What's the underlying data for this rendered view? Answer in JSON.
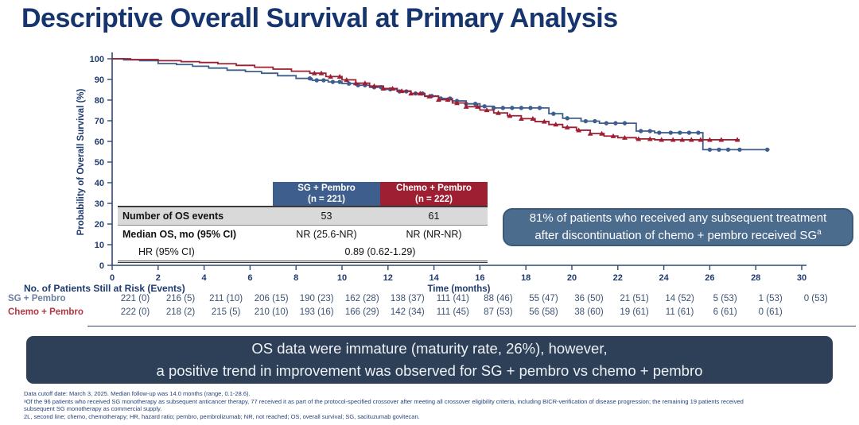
{
  "slide": {
    "title": "Descriptive Overall Survival at Primary Analysis",
    "colors": {
      "navy": "#16356e",
      "axis": "#2f4a6e",
      "sg_blue": "#3e5f8e",
      "chemo_red": "#9e1e32",
      "banner_bg": "#2e4057",
      "callout_bg": "#4c6c8e",
      "shaded_row": "#d9d9d9"
    }
  },
  "chart_data": {
    "type": "line",
    "subtype": "kaplan-meier-step",
    "xlabel": "Time (months)",
    "ylabel": "Probability of Overall Survival (%)",
    "xlim": [
      0,
      30
    ],
    "ylim": [
      0,
      100
    ],
    "xticks": [
      0,
      2,
      4,
      6,
      8,
      10,
      12,
      14,
      16,
      18,
      20,
      22,
      24,
      26,
      28,
      30
    ],
    "yticks": [
      0,
      10,
      20,
      30,
      40,
      50,
      60,
      70,
      80,
      90,
      100
    ],
    "grid": false,
    "legend_position": "table-overlay",
    "series": [
      {
        "name": "SG + Pembro",
        "n": 221,
        "color": "#3e5f8e",
        "marker": "circle",
        "points": [
          [
            0,
            100
          ],
          [
            0.5,
            99.5
          ],
          [
            1.2,
            99.1
          ],
          [
            2,
            97.7
          ],
          [
            2.8,
            97.2
          ],
          [
            3.5,
            96.4
          ],
          [
            4.2,
            95.5
          ],
          [
            5,
            94.5
          ],
          [
            5.8,
            93.8
          ],
          [
            6.5,
            93
          ],
          [
            7.2,
            91.8
          ],
          [
            8,
            90.5
          ],
          [
            8.7,
            89.6
          ],
          [
            9.4,
            88.8
          ],
          [
            10,
            88
          ],
          [
            10.6,
            87.2
          ],
          [
            11.2,
            86.2
          ],
          [
            11.8,
            85.2
          ],
          [
            12.4,
            84.2
          ],
          [
            13,
            83.2
          ],
          [
            13.6,
            82
          ],
          [
            14.2,
            80.8
          ],
          [
            14.8,
            79.6
          ],
          [
            15.4,
            78.2
          ],
          [
            16,
            77
          ],
          [
            16.6,
            76.2
          ],
          [
            19,
            73.4
          ],
          [
            19.6,
            71.2
          ],
          [
            20.4,
            69.8
          ],
          [
            21.2,
            68.8
          ],
          [
            22.8,
            65
          ],
          [
            23.6,
            64.2
          ],
          [
            25.7,
            56
          ],
          [
            28.6,
            56
          ]
        ],
        "censor_marks": [
          8.6,
          8.9,
          9.2,
          9.6,
          9.9,
          10.3,
          10.7,
          11,
          11.4,
          11.7,
          12.1,
          12.5,
          12.8,
          13.2,
          13.5,
          13.9,
          14.3,
          14.7,
          15,
          15.4,
          15.8,
          16.2,
          16.6,
          17,
          17.4,
          17.8,
          18.2,
          18.6,
          19.2,
          19.8,
          20.6,
          21,
          21.5,
          21.9,
          22.3,
          23,
          23.4,
          23.8,
          24.3,
          24.7,
          25.1,
          25.5,
          26,
          26.4,
          26.8,
          27.3,
          28.5
        ]
      },
      {
        "name": "Chemo + Pembro",
        "n": 222,
        "color": "#9e1e32",
        "marker": "triangle",
        "points": [
          [
            0,
            100
          ],
          [
            0.8,
            99.6
          ],
          [
            2,
            99.1
          ],
          [
            3,
            98.6
          ],
          [
            3.8,
            98.2
          ],
          [
            4.6,
            97.6
          ],
          [
            5.4,
            96.8
          ],
          [
            6.2,
            95.9
          ],
          [
            7,
            95
          ],
          [
            7.8,
            94
          ],
          [
            8.6,
            93
          ],
          [
            9.3,
            91.4
          ],
          [
            10,
            89.8
          ],
          [
            10.6,
            88.2
          ],
          [
            11.2,
            86.8
          ],
          [
            11.8,
            85.6
          ],
          [
            12.4,
            84.4
          ],
          [
            13,
            83.2
          ],
          [
            13.6,
            81.8
          ],
          [
            14.2,
            80.2
          ],
          [
            14.8,
            78.6
          ],
          [
            15.4,
            76.8
          ],
          [
            16,
            75.2
          ],
          [
            16.6,
            73.8
          ],
          [
            17.2,
            72.4
          ],
          [
            17.8,
            71
          ],
          [
            18.4,
            69.6
          ],
          [
            19,
            68.2
          ],
          [
            19.6,
            66.8
          ],
          [
            20.2,
            65.4
          ],
          [
            20.8,
            63.8
          ],
          [
            21.4,
            62.6
          ],
          [
            22,
            61.8
          ],
          [
            22.8,
            61.2
          ],
          [
            23.6,
            60.8
          ],
          [
            27.3,
            60.8
          ]
        ],
        "censor_marks": [
          8.8,
          9.1,
          9.5,
          9.9,
          10.2,
          10.6,
          11,
          11.4,
          11.8,
          12.2,
          12.6,
          13,
          13.4,
          13.8,
          14.2,
          14.6,
          15,
          15.4,
          15.9,
          16.3,
          16.8,
          17.3,
          17.8,
          18.3,
          18.8,
          19.3,
          19.8,
          20.3,
          20.8,
          21.3,
          21.8,
          22.3,
          22.9,
          23.4,
          23.9,
          24.4,
          24.8,
          25.2,
          25.6,
          26,
          26.5,
          27.2
        ]
      }
    ]
  },
  "stats_table": {
    "columns": [
      {
        "label": "SG + Pembro",
        "sub": "(n = 221)",
        "color": "#3e5f8e"
      },
      {
        "label": "Chemo + Pembro",
        "sub": "(n = 222)",
        "color": "#9e1e32"
      }
    ],
    "rows": [
      {
        "label": "Number of OS events",
        "values": [
          "53",
          "61"
        ]
      },
      {
        "label": "Median OS, mo (95% CI)",
        "values": [
          "NR (25.6-NR)",
          "NR (NR-NR)"
        ]
      },
      {
        "label": "HR (95% CI)",
        "span_value": "0.89 (0.62-1.29)"
      }
    ]
  },
  "callout": {
    "line1": "81% of patients who received any subsequent treatment",
    "line2": "after discontinuation of chemo + pembro received SG",
    "sup": "a"
  },
  "risk_table": {
    "heading": "No. of Patients Still at Risk (Events)",
    "rows": [
      {
        "label": "SG + Pembro",
        "label_color": "#6b7f9e",
        "values": [
          "221 (0)",
          "216 (5)",
          "211 (10)",
          "206 (15)",
          "190 (23)",
          "162 (28)",
          "138 (37)",
          "111 (41)",
          "88 (46)",
          "55 (47)",
          "36 (50)",
          "21 (51)",
          "14 (52)",
          "5 (53)",
          "1 (53)",
          "0 (53)"
        ]
      },
      {
        "label": "Chemo + Pembro",
        "label_color": "#b23842",
        "values": [
          "222 (0)",
          "218 (2)",
          "215 (5)",
          "210 (10)",
          "193 (16)",
          "166 (29)",
          "142 (34)",
          "111 (45)",
          "87 (53)",
          "56 (58)",
          "38 (60)",
          "19 (61)",
          "11 (61)",
          "6 (61)",
          "0 (61)"
        ]
      }
    ]
  },
  "banner": {
    "line1": "OS data were immature (maturity rate, 26%), however,",
    "line2": "a positive trend in improvement was observed for SG + pembro vs chemo + pembro"
  },
  "footnotes": [
    "Data cutoff date: March 3, 2025. Median follow-up was 14.0 months (range, 0.1-28.6).",
    "ᵃOf the 96 patients who received SG monotherapy as subsequent anticancer therapy, 77 received it as part of the protocol-specified crossover after meeting all crossover eligibility criteria, including BICR-verification of disease progression; the remaining 19 patients received",
    "subsequent SG monotherapy as commercial supply.",
    "2L, second line; chemo, chemotherapy; HR, hazard ratio; pembro, pembrolizumab; NR, not reached; OS, overall survival; SG, sacituzumab govitecan."
  ]
}
